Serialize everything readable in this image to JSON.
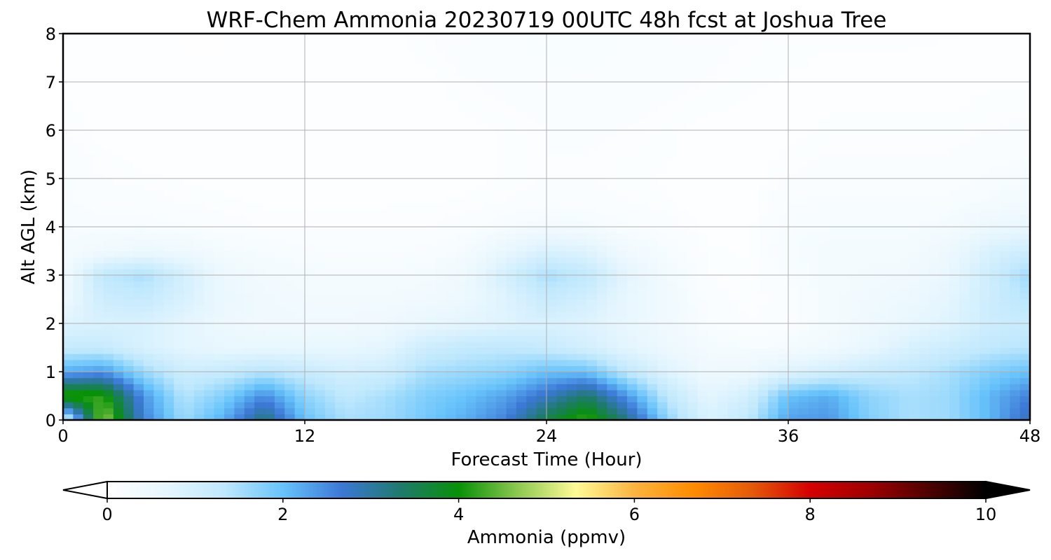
{
  "chart_data": {
    "type": "heatmap",
    "title": "WRF-Chem Ammonia  20230719 00UTC 48h fcst at Joshua Tree",
    "xlabel": "Forecast Time (Hour)",
    "ylabel": "Alt AGL (km)",
    "xlim": [
      0,
      48
    ],
    "ylim": [
      0,
      8
    ],
    "x_ticks": [
      "0",
      "12",
      "24",
      "36",
      "48"
    ],
    "y_ticks": [
      "0",
      "1",
      "2",
      "3",
      "4",
      "5",
      "6",
      "7",
      "8"
    ],
    "grid": true,
    "colorbar": {
      "label": "Ammonia  (ppmv)",
      "range": [
        0,
        10
      ],
      "ticks": [
        "0",
        "2",
        "4",
        "6",
        "8",
        "10"
      ],
      "extend": "both",
      "colors": [
        "#ffffff",
        "#e6f6fe",
        "#bfe8fd",
        "#67c3fb",
        "#3c78d6",
        "#1f7a6e",
        "#079107",
        "#8cc850",
        "#fffa96",
        "#fbb440",
        "#ff8c00",
        "#e55a0a",
        "#d40000",
        "#a00000",
        "#500000",
        "#000000"
      ]
    },
    "series": [
      {
        "x": 0,
        "values": [
          0.7,
          4.3,
          2.2,
          1.2,
          0.8,
          0.45,
          0.35,
          0.3,
          0.25,
          0.2,
          0.18,
          0.15,
          0.12,
          0.1,
          0.08,
          0.07,
          0.06
        ]
      },
      {
        "x": 2,
        "values": [
          4.8,
          4.2,
          2.4,
          1.2,
          0.9,
          1.1,
          1.3,
          0.4,
          0.22,
          0.15,
          0.12,
          0.1,
          0.08,
          0.07,
          0.06,
          0.05,
          0.05
        ]
      },
      {
        "x": 4,
        "values": [
          2.6,
          2.4,
          1.6,
          0.9,
          0.9,
          1.2,
          1.5,
          0.5,
          0.22,
          0.15,
          0.1,
          0.08,
          0.07,
          0.06,
          0.05,
          0.05,
          0.04
        ]
      },
      {
        "x": 6,
        "values": [
          1.6,
          1.4,
          1.1,
          0.7,
          0.7,
          0.9,
          1.0,
          0.45,
          0.2,
          0.12,
          0.09,
          0.07,
          0.06,
          0.05,
          0.05,
          0.04,
          0.04
        ]
      },
      {
        "x": 8,
        "values": [
          2.2,
          1.8,
          1.2,
          0.6,
          0.5,
          0.55,
          0.5,
          0.3,
          0.15,
          0.1,
          0.08,
          0.06,
          0.05,
          0.05,
          0.05,
          0.04,
          0.04
        ]
      },
      {
        "x": 10,
        "values": [
          3.3,
          2.5,
          1.4,
          0.6,
          0.4,
          0.4,
          0.35,
          0.25,
          0.12,
          0.09,
          0.07,
          0.06,
          0.05,
          0.05,
          0.05,
          0.05,
          0.05
        ]
      },
      {
        "x": 12,
        "values": [
          2.0,
          1.7,
          1.2,
          0.6,
          0.4,
          0.35,
          0.3,
          0.2,
          0.12,
          0.08,
          0.07,
          0.06,
          0.05,
          0.05,
          0.05,
          0.05,
          0.05
        ]
      },
      {
        "x": 14,
        "values": [
          1.5,
          1.3,
          1.0,
          0.6,
          0.4,
          0.35,
          0.28,
          0.18,
          0.12,
          0.08,
          0.07,
          0.06,
          0.05,
          0.05,
          0.05,
          0.05,
          0.06
        ]
      },
      {
        "x": 16,
        "values": [
          1.6,
          1.5,
          1.1,
          0.7,
          0.45,
          0.35,
          0.28,
          0.18,
          0.12,
          0.09,
          0.07,
          0.06,
          0.06,
          0.06,
          0.06,
          0.07,
          0.08
        ]
      },
      {
        "x": 18,
        "values": [
          1.9,
          1.8,
          1.5,
          1.1,
          0.6,
          0.4,
          0.3,
          0.2,
          0.12,
          0.09,
          0.07,
          0.07,
          0.07,
          0.07,
          0.08,
          0.1,
          0.12
        ]
      },
      {
        "x": 20,
        "values": [
          2.2,
          2.0,
          1.6,
          1.25,
          0.7,
          0.5,
          0.45,
          0.3,
          0.15,
          0.1,
          0.08,
          0.08,
          0.08,
          0.1,
          0.12,
          0.14,
          0.15
        ]
      },
      {
        "x": 22,
        "values": [
          2.6,
          2.3,
          1.7,
          1.3,
          0.8,
          0.8,
          1.0,
          0.6,
          0.25,
          0.12,
          0.1,
          0.1,
          0.1,
          0.12,
          0.14,
          0.16,
          0.17
        ]
      },
      {
        "x": 24,
        "values": [
          3.6,
          2.8,
          2.0,
          1.2,
          0.9,
          1.2,
          1.5,
          0.9,
          0.35,
          0.15,
          0.12,
          0.12,
          0.12,
          0.14,
          0.16,
          0.18,
          0.18
        ]
      },
      {
        "x": 26,
        "values": [
          4.3,
          3.4,
          2.0,
          1.0,
          0.8,
          1.0,
          1.3,
          0.8,
          0.3,
          0.15,
          0.12,
          0.12,
          0.13,
          0.15,
          0.17,
          0.18,
          0.18
        ]
      },
      {
        "x": 28,
        "values": [
          3.2,
          2.4,
          1.3,
          0.7,
          0.6,
          0.6,
          0.7,
          0.4,
          0.2,
          0.12,
          0.1,
          0.11,
          0.12,
          0.14,
          0.16,
          0.17,
          0.17
        ]
      },
      {
        "x": 30,
        "values": [
          1.7,
          1.3,
          0.8,
          0.5,
          0.4,
          0.4,
          0.35,
          0.25,
          0.15,
          0.1,
          0.09,
          0.1,
          0.1,
          0.12,
          0.14,
          0.15,
          0.15
        ]
      },
      {
        "x": 32,
        "values": [
          0.9,
          0.7,
          0.45,
          0.3,
          0.2,
          0.15,
          0.12,
          0.1,
          0.08,
          0.07,
          0.07,
          0.07,
          0.08,
          0.1,
          0.12,
          0.13,
          0.13
        ]
      },
      {
        "x": 34,
        "values": [
          1.3,
          1.0,
          0.5,
          0.25,
          0.12,
          0.1,
          0.1,
          0.09,
          0.08,
          0.07,
          0.07,
          0.07,
          0.08,
          0.09,
          0.1,
          0.11,
          0.12
        ]
      },
      {
        "x": 36,
        "values": [
          2.3,
          2.0,
          0.8,
          0.3,
          0.15,
          0.14,
          0.2,
          0.25,
          0.22,
          0.18,
          0.12,
          0.1,
          0.08,
          0.08,
          0.09,
          0.1,
          0.1
        ]
      },
      {
        "x": 38,
        "values": [
          2.4,
          2.2,
          1.0,
          0.4,
          0.3,
          0.3,
          0.3,
          0.3,
          0.25,
          0.2,
          0.15,
          0.12,
          0.1,
          0.09,
          0.09,
          0.09,
          0.1
        ]
      },
      {
        "x": 40,
        "values": [
          1.8,
          1.7,
          1.2,
          0.6,
          0.45,
          0.4,
          0.35,
          0.3,
          0.25,
          0.2,
          0.15,
          0.12,
          0.1,
          0.09,
          0.09,
          0.09,
          0.1
        ]
      },
      {
        "x": 42,
        "values": [
          1.5,
          1.5,
          1.3,
          0.9,
          0.6,
          0.5,
          0.4,
          0.3,
          0.25,
          0.2,
          0.15,
          0.12,
          0.1,
          0.09,
          0.09,
          0.09,
          0.1
        ]
      },
      {
        "x": 44,
        "values": [
          1.6,
          1.6,
          1.5,
          1.1,
          0.8,
          0.7,
          0.6,
          0.5,
          0.3,
          0.2,
          0.15,
          0.12,
          0.1,
          0.09,
          0.09,
          0.08,
          0.1
        ]
      },
      {
        "x": 46,
        "values": [
          2.1,
          2.1,
          1.8,
          1.3,
          1.1,
          1.1,
          1.1,
          0.9,
          0.5,
          0.3,
          0.2,
          0.15,
          0.12,
          0.1,
          0.09,
          0.08,
          0.08
        ]
      },
      {
        "x": 48,
        "values": [
          2.9,
          2.6,
          2.0,
          1.4,
          1.2,
          1.4,
          1.6,
          1.1,
          0.6,
          0.35,
          0.25,
          0.18,
          0.14,
          0.11,
          0.09,
          0.08,
          0.08
        ]
      }
    ],
    "y": [
      0,
      0.5,
      1,
      1.5,
      2,
      2.5,
      3,
      3.5,
      4,
      4.5,
      5,
      5.5,
      6,
      6.5,
      7,
      7.5,
      8
    ]
  }
}
